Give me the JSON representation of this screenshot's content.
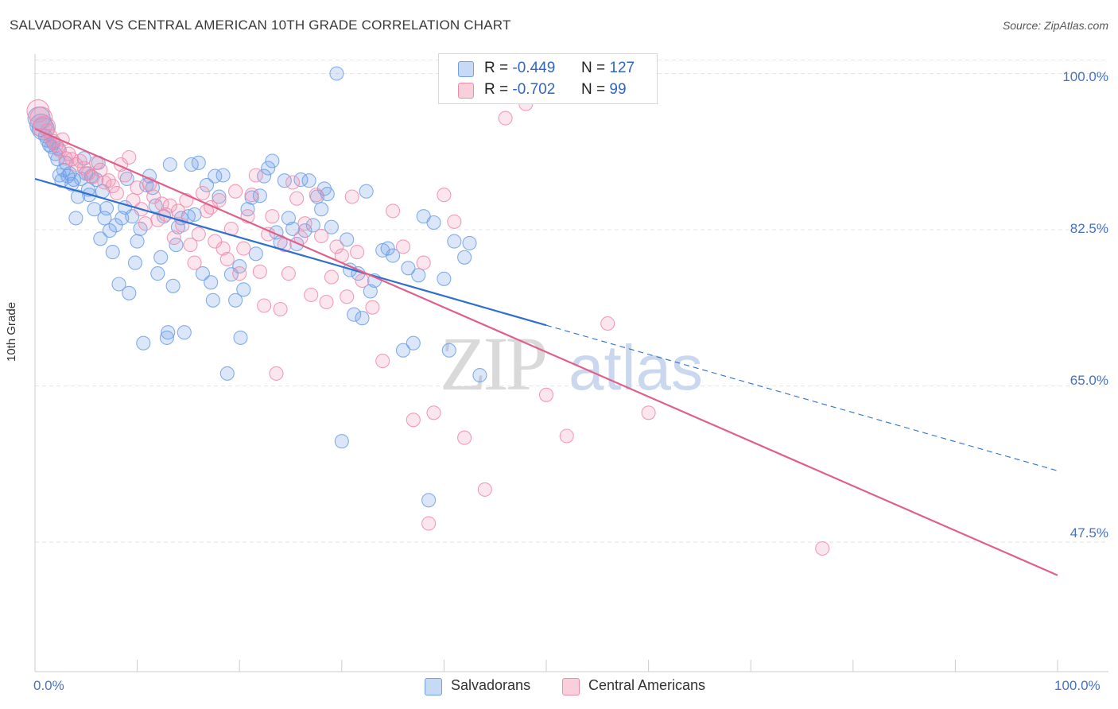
{
  "header": {
    "title": "SALVADORAN VS CENTRAL AMERICAN 10TH GRADE CORRELATION CHART",
    "source": "Source: ZipAtlas.com"
  },
  "watermark": {
    "zip": "ZIP",
    "atlas": "atlas"
  },
  "legend": {
    "rows": [
      {
        "r_label": "R =",
        "r_value": "-0.449",
        "n_label": "N =",
        "n_value": "127",
        "color": "#6fa0e8"
      },
      {
        "r_label": "R =",
        "r_value": "-0.702",
        "n_label": "N =",
        "n_value": "99",
        "color": "#f08cab"
      }
    ],
    "bottom": [
      {
        "label": "Salvadorans",
        "color": "#6fa0e8"
      },
      {
        "label": "Central Americans",
        "color": "#f08cab"
      }
    ]
  },
  "chart_data": {
    "type": "scatter",
    "title": "SALVADORAN VS CENTRAL AMERICAN 10TH GRADE CORRELATION CHART",
    "xlabel": "",
    "ylabel": "10th Grade",
    "xlim": [
      0,
      100
    ],
    "ylim": [
      33,
      102
    ],
    "x_tick_labels": [
      "0.0%",
      "100.0%"
    ],
    "y_ticks": [
      47.5,
      65.0,
      82.5,
      100.0
    ],
    "y_tick_labels": [
      "47.5%",
      "65.0%",
      "82.5%",
      "100.0%"
    ],
    "grid": true,
    "series": [
      {
        "name": "Salvadorans",
        "color": "#6fa0e8",
        "line_color": "#2f6fd0",
        "r": -0.449,
        "n": 127,
        "trend": {
          "x0": 0,
          "y0": 88.2,
          "x1": 50,
          "y1": 71.8,
          "dash_to_x": 100,
          "dash_to_y": 55.5
        },
        "points": [
          [
            0.4,
            95.0
          ],
          [
            0.6,
            94.2
          ],
          [
            0.8,
            93.8
          ],
          [
            1.0,
            93.0
          ],
          [
            1.2,
            92.5
          ],
          [
            1.4,
            92.0
          ],
          [
            1.6,
            91.8
          ],
          [
            1.8,
            92.2
          ],
          [
            2.0,
            91.0
          ],
          [
            2.2,
            90.4
          ],
          [
            2.4,
            88.6
          ],
          [
            2.6,
            88.0
          ],
          [
            2.8,
            89.2
          ],
          [
            3.0,
            90.0
          ],
          [
            3.2,
            88.5
          ],
          [
            3.4,
            88.8
          ],
          [
            3.6,
            87.6
          ],
          [
            3.8,
            88.1
          ],
          [
            4.0,
            83.8
          ],
          [
            4.2,
            86.2
          ],
          [
            4.5,
            88.2
          ],
          [
            4.8,
            90.5
          ],
          [
            5.0,
            88.8
          ],
          [
            5.2,
            87.0
          ],
          [
            5.5,
            88.5
          ],
          [
            5.8,
            84.8
          ],
          [
            6.0,
            88.1
          ],
          [
            6.2,
            90.0
          ],
          [
            6.4,
            81.5
          ],
          [
            6.6,
            86.8
          ],
          [
            6.8,
            83.8
          ],
          [
            7.0,
            84.9
          ],
          [
            7.3,
            82.4
          ],
          [
            7.6,
            80.0
          ],
          [
            7.9,
            83.0
          ],
          [
            8.2,
            76.4
          ],
          [
            8.5,
            83.8
          ],
          [
            8.8,
            85.0
          ],
          [
            9.0,
            88.2
          ],
          [
            9.2,
            75.4
          ],
          [
            9.5,
            84.0
          ],
          [
            9.8,
            78.8
          ],
          [
            10.0,
            81.2
          ],
          [
            10.3,
            82.6
          ],
          [
            10.6,
            69.8
          ],
          [
            10.9,
            87.5
          ],
          [
            11.2,
            88.5
          ],
          [
            11.5,
            87.2
          ],
          [
            11.8,
            85.2
          ],
          [
            12.0,
            77.6
          ],
          [
            12.3,
            79.4
          ],
          [
            12.6,
            84.0
          ],
          [
            12.9,
            70.4
          ],
          [
            13.2,
            89.8
          ],
          [
            13.5,
            76.2
          ],
          [
            13.8,
            80.8
          ],
          [
            14.0,
            82.8
          ],
          [
            14.3,
            83.8
          ],
          [
            14.6,
            71.0
          ],
          [
            15.0,
            84.0
          ],
          [
            15.3,
            89.8
          ],
          [
            15.6,
            84.2
          ],
          [
            16.0,
            90.0
          ],
          [
            16.4,
            77.6
          ],
          [
            16.8,
            87.5
          ],
          [
            17.2,
            76.6
          ],
          [
            17.6,
            88.5
          ],
          [
            18.0,
            86.2
          ],
          [
            18.4,
            88.6
          ],
          [
            18.8,
            66.4
          ],
          [
            19.2,
            77.5
          ],
          [
            19.6,
            74.6
          ],
          [
            20.0,
            78.4
          ],
          [
            20.4,
            75.8
          ],
          [
            20.8,
            84.8
          ],
          [
            21.2,
            86.1
          ],
          [
            21.6,
            79.8
          ],
          [
            22.0,
            86.3
          ],
          [
            22.4,
            88.5
          ],
          [
            22.8,
            89.4
          ],
          [
            23.2,
            90.2
          ],
          [
            23.6,
            82.2
          ],
          [
            24.0,
            81.1
          ],
          [
            24.4,
            88.0
          ],
          [
            24.8,
            83.8
          ],
          [
            25.2,
            82.6
          ],
          [
            25.6,
            80.9
          ],
          [
            26.0,
            88.1
          ],
          [
            26.4,
            82.4
          ],
          [
            26.8,
            88.0
          ],
          [
            27.2,
            83.0
          ],
          [
            27.6,
            86.2
          ],
          [
            28.0,
            84.8
          ],
          [
            28.3,
            87.1
          ],
          [
            28.6,
            86.5
          ],
          [
            29.0,
            82.8
          ],
          [
            29.5,
            100.0
          ],
          [
            30.0,
            58.8
          ],
          [
            30.5,
            81.4
          ],
          [
            30.8,
            78.0
          ],
          [
            31.2,
            73.0
          ],
          [
            31.6,
            77.6
          ],
          [
            32.0,
            72.6
          ],
          [
            32.4,
            86.8
          ],
          [
            32.8,
            75.6
          ],
          [
            33.2,
            76.8
          ],
          [
            34.0,
            80.2
          ],
          [
            34.5,
            80.4
          ],
          [
            35.0,
            79.6
          ],
          [
            36.0,
            69.0
          ],
          [
            36.5,
            78.2
          ],
          [
            37.0,
            69.8
          ],
          [
            37.5,
            77.4
          ],
          [
            38.0,
            84.0
          ],
          [
            38.5,
            52.2
          ],
          [
            39.0,
            83.3
          ],
          [
            40.0,
            77.0
          ],
          [
            40.5,
            69.0
          ],
          [
            41.0,
            81.2
          ],
          [
            42.0,
            79.4
          ],
          [
            42.5,
            81.0
          ],
          [
            43.5,
            66.2
          ],
          [
            20.1,
            70.4
          ],
          [
            13.0,
            71.0
          ],
          [
            17.4,
            74.6
          ],
          [
            2.3,
            91.6
          ],
          [
            5.3,
            86.4
          ]
        ]
      },
      {
        "name": "Central Americans",
        "color": "#f08cab",
        "line_color": "#e0608a",
        "r": -0.702,
        "n": 99,
        "trend": {
          "x0": 0,
          "y0": 93.8,
          "x1": 100,
          "y1": 43.8
        },
        "points": [
          [
            0.3,
            95.8
          ],
          [
            0.6,
            95.0
          ],
          [
            0.9,
            94.0
          ],
          [
            1.2,
            93.6
          ],
          [
            1.5,
            93.0
          ],
          [
            1.8,
            92.4
          ],
          [
            2.1,
            92.0
          ],
          [
            2.4,
            91.4
          ],
          [
            2.7,
            92.6
          ],
          [
            3.0,
            90.5
          ],
          [
            3.3,
            91.0
          ],
          [
            3.6,
            90.4
          ],
          [
            4.0,
            89.8
          ],
          [
            4.4,
            90.2
          ],
          [
            4.8,
            89.4
          ],
          [
            5.2,
            88.8
          ],
          [
            5.6,
            88.4
          ],
          [
            6.0,
            90.0
          ],
          [
            6.4,
            89.2
          ],
          [
            6.8,
            87.8
          ],
          [
            7.2,
            88.0
          ],
          [
            7.6,
            87.4
          ],
          [
            8.0,
            86.6
          ],
          [
            8.4,
            89.8
          ],
          [
            8.8,
            88.6
          ],
          [
            9.2,
            90.6
          ],
          [
            9.6,
            85.8
          ],
          [
            10.0,
            87.2
          ],
          [
            10.4,
            84.8
          ],
          [
            10.8,
            83.2
          ],
          [
            11.2,
            87.6
          ],
          [
            11.6,
            86.2
          ],
          [
            12.0,
            83.6
          ],
          [
            12.4,
            85.4
          ],
          [
            12.8,
            84.2
          ],
          [
            13.2,
            85.2
          ],
          [
            13.6,
            81.6
          ],
          [
            14.0,
            84.6
          ],
          [
            14.4,
            83.0
          ],
          [
            14.8,
            85.8
          ],
          [
            15.2,
            80.8
          ],
          [
            15.6,
            78.8
          ],
          [
            16.0,
            82.0
          ],
          [
            16.4,
            86.6
          ],
          [
            16.8,
            84.6
          ],
          [
            17.2,
            85.0
          ],
          [
            17.6,
            81.2
          ],
          [
            18.0,
            85.8
          ],
          [
            18.4,
            80.4
          ],
          [
            18.8,
            79.2
          ],
          [
            19.2,
            82.6
          ],
          [
            19.6,
            86.8
          ],
          [
            20.0,
            77.6
          ],
          [
            20.4,
            80.4
          ],
          [
            20.8,
            84.0
          ],
          [
            21.2,
            86.4
          ],
          [
            21.6,
            88.6
          ],
          [
            22.0,
            77.8
          ],
          [
            22.4,
            74.0
          ],
          [
            22.8,
            82.0
          ],
          [
            23.2,
            84.0
          ],
          [
            23.6,
            66.4
          ],
          [
            24.0,
            73.6
          ],
          [
            24.4,
            80.8
          ],
          [
            24.8,
            77.6
          ],
          [
            25.2,
            87.8
          ],
          [
            25.6,
            86.0
          ],
          [
            26.0,
            81.6
          ],
          [
            26.4,
            83.2
          ],
          [
            27.0,
            75.2
          ],
          [
            27.5,
            86.4
          ],
          [
            28.0,
            81.8
          ],
          [
            28.5,
            74.4
          ],
          [
            29.0,
            77.2
          ],
          [
            29.5,
            80.6
          ],
          [
            30.0,
            79.6
          ],
          [
            30.5,
            75.0
          ],
          [
            31.0,
            86.2
          ],
          [
            31.5,
            80.0
          ],
          [
            32.0,
            76.8
          ],
          [
            33.0,
            73.8
          ],
          [
            34.0,
            67.8
          ],
          [
            35.0,
            84.6
          ],
          [
            36.0,
            80.6
          ],
          [
            37.0,
            61.2
          ],
          [
            38.0,
            78.8
          ],
          [
            38.5,
            49.6
          ],
          [
            39.0,
            62.0
          ],
          [
            40.0,
            86.4
          ],
          [
            41.0,
            83.4
          ],
          [
            42.0,
            59.2
          ],
          [
            44.0,
            53.4
          ],
          [
            46.0,
            95.0
          ],
          [
            48.0,
            96.6
          ],
          [
            50.0,
            64.0
          ],
          [
            52.0,
            59.4
          ],
          [
            56.0,
            72.0
          ],
          [
            60.0,
            62.0
          ],
          [
            77.0,
            46.8
          ]
        ]
      }
    ]
  }
}
